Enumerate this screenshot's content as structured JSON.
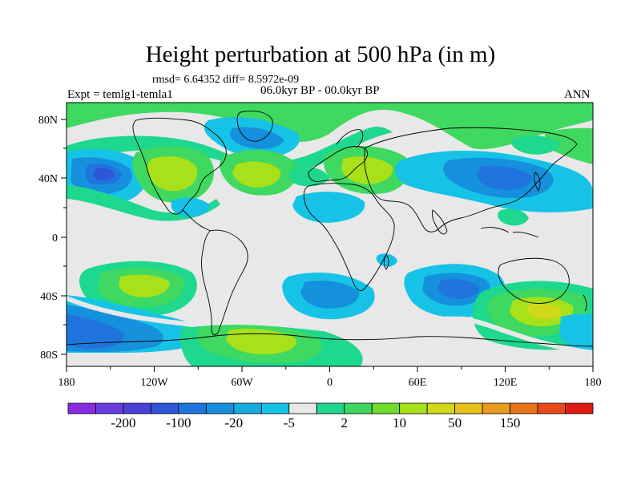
{
  "title": "Height perturbation at 500 hPa (in m)",
  "stats": "rmsd= 6.64352 diff= 8.5972e-09",
  "experiment": "Expt = temlg1-temla1",
  "period": "06.0kyr BP - 00.0kyr BP",
  "season": "ANN",
  "lat_ticks": [
    "80N",
    "40N",
    "0",
    "40S",
    "80S"
  ],
  "lon_ticks": [
    "180",
    "120W",
    "60W",
    "0",
    "60E",
    "120E",
    "180"
  ],
  "colorbar": {
    "labels": [
      "-200",
      "-100",
      "-20",
      "-5",
      "2",
      "10",
      "50",
      "150"
    ],
    "colors": [
      "#8a2be2",
      "#6a3ce0",
      "#4b3fd6",
      "#2f55d8",
      "#1f74de",
      "#1590dc",
      "#14acde",
      "#16c3e6",
      "#e8e8e8",
      "#1ed88e",
      "#3fd860",
      "#70dc2c",
      "#a8e01a",
      "#d0d818",
      "#e8c01a",
      "#e89a1a",
      "#e8741a",
      "#e84a1a",
      "#e01a10"
    ]
  },
  "map_data": {
    "type": "contour-map",
    "variable": "500 hPa height perturbation",
    "units": "m",
    "lon_range": [
      -180,
      180
    ],
    "lat_range": [
      -90,
      90
    ]
  }
}
